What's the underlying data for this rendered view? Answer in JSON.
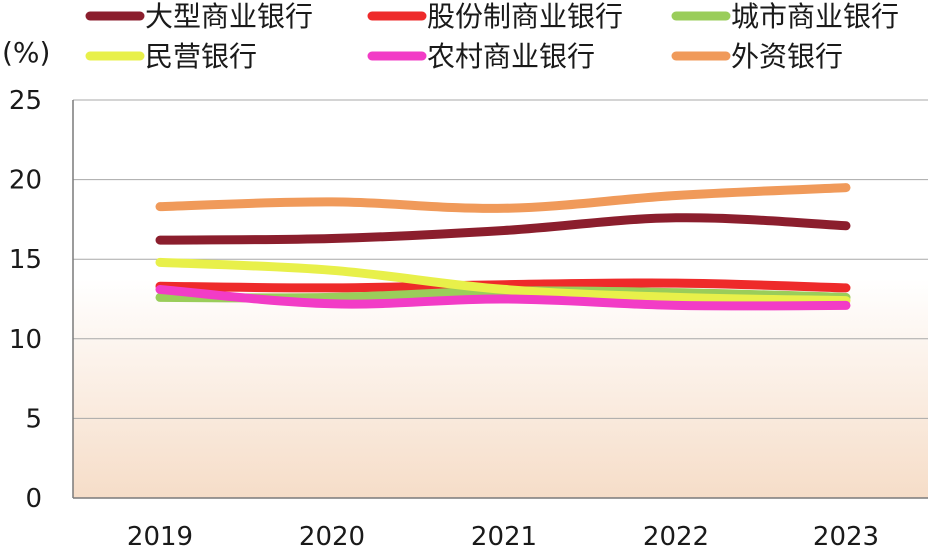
{
  "chart_data": {
    "type": "line",
    "ylabel": "(%)",
    "xlabel": "",
    "x": [
      "2019",
      "2020",
      "2021",
      "2022",
      "2023"
    ],
    "ylim": [
      0,
      25
    ],
    "yticks": [
      "0",
      "5",
      "10",
      "15",
      "20",
      "25"
    ],
    "grid": true,
    "legend_position": "top",
    "colors": {
      "background_top": "#ffffff",
      "background_bottom": "#f6ddc8",
      "grid": "#a8a8a8",
      "axis": "#7a7a7a"
    },
    "series": [
      {
        "name": "大型商业银行",
        "color": "#8b1e2d",
        "values": [
          16.2,
          16.3,
          16.8,
          17.6,
          17.1
        ]
      },
      {
        "name": "股份制商业银行",
        "color": "#ee2a2a",
        "values": [
          13.3,
          13.2,
          13.4,
          13.5,
          13.2
        ]
      },
      {
        "name": "城市商业银行",
        "color": "#9acd5a",
        "values": [
          12.6,
          12.6,
          13.0,
          12.9,
          12.6
        ]
      },
      {
        "name": "民营银行",
        "color": "#e8f04a",
        "values": [
          14.8,
          14.3,
          13.1,
          12.6,
          12.4
        ]
      },
      {
        "name": "农村商业银行",
        "color": "#f23cc6",
        "values": [
          13.1,
          12.2,
          12.5,
          12.1,
          12.1
        ]
      },
      {
        "name": "外资银行",
        "color": "#f09a5a",
        "values": [
          18.3,
          18.6,
          18.2,
          19.0,
          19.5
        ]
      }
    ]
  }
}
